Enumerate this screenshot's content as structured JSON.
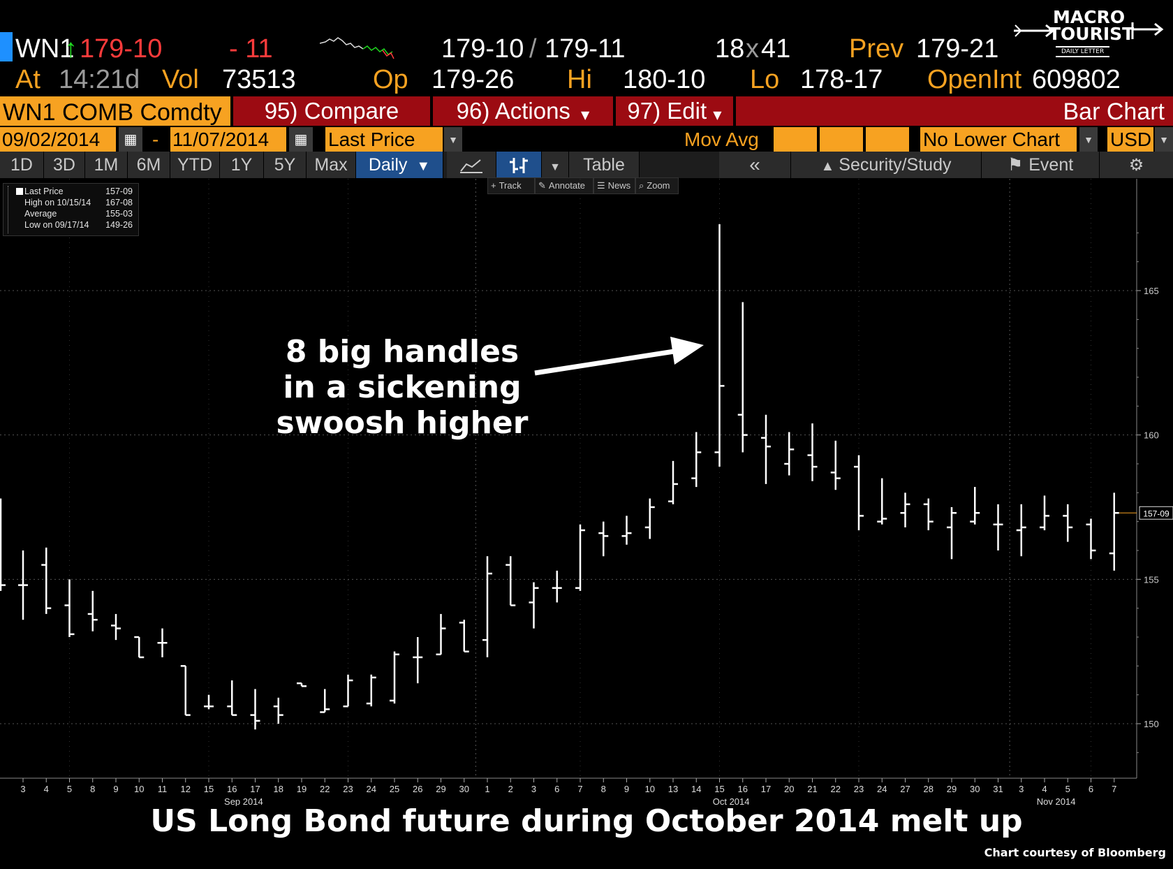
{
  "header": {
    "ticker": "WN1",
    "last": "179-10",
    "change": "- 11",
    "bid_ask_bid": "179-10",
    "bid_ask_sep": "/",
    "bid_ask_ask": "179-11",
    "size_bid": "18",
    "size_x": "x",
    "size_ask": "41",
    "prev_label": "Prev",
    "prev_value": "179-21",
    "at_label": "At",
    "at_time": "14:21d",
    "vol_label": "Vol",
    "vol_value": "73513",
    "op_label": "Op",
    "op_value": "179-26",
    "hi_label": "Hi",
    "hi_value": "180-10",
    "lo_label": "Lo",
    "lo_value": "178-17",
    "openint_label": "OpenInt",
    "openint_value": "609802"
  },
  "logo": {
    "line1": "MACRO",
    "line2": "TOURIST",
    "line3": "DAILY LETTER"
  },
  "toolbar": {
    "security": "WN1 COMB Comdty",
    "compare": "95) Compare",
    "actions": "96) Actions",
    "edit": "97) Edit",
    "chart_type": "Bar Chart"
  },
  "row3": {
    "start_date": "09/02/2014",
    "dash": "-",
    "end_date": "11/07/2014",
    "field": "Last Price",
    "mov_avg": "Mov Avg",
    "lower_chart": "No Lower Chart",
    "currency": "USD"
  },
  "tabs": [
    "1D",
    "3D",
    "1M",
    "6M",
    "YTD",
    "1Y",
    "5Y",
    "Max"
  ],
  "period": "Daily",
  "table_label": "Table",
  "security_study": "Security/Study",
  "event": "Event",
  "mini_tools": [
    "Track",
    "Annotate",
    "News",
    "Zoom"
  ],
  "legend": [
    {
      "label": "Last Price",
      "value": "157-09"
    },
    {
      "label": "High on 10/15/14",
      "value": "167-08"
    },
    {
      "label": "Average",
      "value": "155-03"
    },
    {
      "label": "Low on 09/17/14",
      "value": "149-26"
    }
  ],
  "annotation": [
    "8 big handles",
    "in a sickening",
    "swoosh higher"
  ],
  "caption": "US Long Bond future during October 2014 melt up",
  "credit": "Chart courtesy of Bloomberg",
  "colors": {
    "orange": "#f7a221",
    "red_bar": "#9c0b12",
    "active_tab": "#1f4f8c",
    "down": "#ff3b3b",
    "up": "#1fd61f"
  },
  "chart_data": {
    "type": "bar",
    "subtype": "ohlc",
    "ylim": [
      148,
      168
    ],
    "y_ticks": [
      "150",
      "155",
      "160",
      "165"
    ],
    "last_price_tag": "157-09",
    "month_labels": [
      "Sep 2014",
      "Oct 2014",
      "Nov 2014"
    ],
    "x_labels": [
      "3",
      "4",
      "5",
      "8",
      "9",
      "10",
      "11",
      "12",
      "15",
      "16",
      "17",
      "18",
      "19",
      "22",
      "23",
      "24",
      "25",
      "26",
      "29",
      "30",
      "1",
      "2",
      "3",
      "6",
      "7",
      "8",
      "9",
      "10",
      "13",
      "14",
      "15",
      "16",
      "17",
      "20",
      "21",
      "22",
      "23",
      "24",
      "27",
      "28",
      "29",
      "30",
      "31",
      "3",
      "4",
      "5",
      "6",
      "7"
    ],
    "bars": [
      {
        "o": 154.8,
        "h": 156.0,
        "l": 153.6,
        "c": 154.8
      },
      {
        "o": 155.5,
        "h": 156.1,
        "l": 153.8,
        "c": 154.0
      },
      {
        "o": 154.1,
        "h": 155.0,
        "l": 153.0,
        "c": 153.1
      },
      {
        "o": 153.8,
        "h": 154.6,
        "l": 153.2,
        "c": 153.6
      },
      {
        "o": 153.4,
        "h": 153.8,
        "l": 152.9,
        "c": 153.3
      },
      {
        "o": 153.0,
        "h": 153.0,
        "l": 152.3,
        "c": 152.3
      },
      {
        "o": 152.8,
        "h": 153.3,
        "l": 152.3,
        "c": 152.8
      },
      {
        "o": 152.0,
        "h": 152.0,
        "l": 150.3,
        "c": 150.3
      },
      {
        "o": 150.6,
        "h": 151.0,
        "l": 150.5,
        "c": 150.6
      },
      {
        "o": 150.6,
        "h": 151.5,
        "l": 150.3,
        "c": 150.3
      },
      {
        "o": 150.3,
        "h": 151.2,
        "l": 149.8,
        "c": 150.1
      },
      {
        "o": 150.6,
        "h": 150.9,
        "l": 150.0,
        "c": 150.3
      },
      {
        "o": 151.4,
        "h": 151.4,
        "l": 151.3,
        "c": 151.3
      },
      {
        "o": 150.4,
        "h": 151.2,
        "l": 150.4,
        "c": 150.5
      },
      {
        "o": 150.6,
        "h": 151.7,
        "l": 150.6,
        "c": 151.5
      },
      {
        "o": 150.7,
        "h": 151.7,
        "l": 150.6,
        "c": 151.6
      },
      {
        "o": 150.8,
        "h": 152.5,
        "l": 150.7,
        "c": 152.4
      },
      {
        "o": 152.3,
        "h": 153.0,
        "l": 151.4,
        "c": 152.3
      },
      {
        "o": 152.4,
        "h": 153.8,
        "l": 152.4,
        "c": 153.3
      },
      {
        "o": 153.5,
        "h": 153.6,
        "l": 152.5,
        "c": 152.5
      },
      {
        "o": 152.9,
        "h": 155.8,
        "l": 152.3,
        "c": 155.2
      },
      {
        "o": 155.5,
        "h": 155.8,
        "l": 154.1,
        "c": 154.1
      },
      {
        "o": 154.2,
        "h": 154.9,
        "l": 153.3,
        "c": 154.7
      },
      {
        "o": 154.7,
        "h": 155.3,
        "l": 154.2,
        "c": 154.7
      },
      {
        "o": 154.7,
        "h": 156.9,
        "l": 154.6,
        "c": 156.7
      },
      {
        "o": 156.6,
        "h": 157.0,
        "l": 155.8,
        "c": 156.5
      },
      {
        "o": 156.5,
        "h": 157.2,
        "l": 156.2,
        "c": 156.6
      },
      {
        "o": 156.8,
        "h": 157.8,
        "l": 156.4,
        "c": 157.5
      },
      {
        "o": 157.7,
        "h": 159.1,
        "l": 157.6,
        "c": 158.3
      },
      {
        "o": 158.5,
        "h": 160.1,
        "l": 158.2,
        "c": 159.4
      },
      {
        "o": 159.4,
        "h": 167.3,
        "l": 158.9,
        "c": 161.7
      },
      {
        "o": 160.7,
        "h": 164.6,
        "l": 159.4,
        "c": 160.0
      },
      {
        "o": 159.9,
        "h": 160.7,
        "l": 158.3,
        "c": 159.6
      },
      {
        "o": 159.0,
        "h": 160.1,
        "l": 158.6,
        "c": 159.5
      },
      {
        "o": 159.3,
        "h": 160.4,
        "l": 158.4,
        "c": 158.9
      },
      {
        "o": 158.7,
        "h": 159.8,
        "l": 158.1,
        "c": 158.5
      },
      {
        "o": 158.9,
        "h": 159.3,
        "l": 156.7,
        "c": 157.2
      },
      {
        "o": 157.0,
        "h": 158.5,
        "l": 156.9,
        "c": 157.1
      },
      {
        "o": 157.3,
        "h": 158.0,
        "l": 156.8,
        "c": 157.6
      },
      {
        "o": 157.6,
        "h": 157.8,
        "l": 156.7,
        "c": 157.0
      },
      {
        "o": 156.8,
        "h": 157.5,
        "l": 155.7,
        "c": 157.3
      },
      {
        "o": 157.0,
        "h": 158.2,
        "l": 156.9,
        "c": 157.3
      },
      {
        "o": 156.9,
        "h": 157.6,
        "l": 156.0,
        "c": 156.9
      },
      {
        "o": 156.7,
        "h": 157.6,
        "l": 155.8,
        "c": 156.8
      },
      {
        "o": 156.8,
        "h": 157.9,
        "l": 156.7,
        "c": 157.2
      },
      {
        "o": 157.2,
        "h": 157.6,
        "l": 156.3,
        "c": 156.8
      },
      {
        "o": 156.9,
        "h": 157.1,
        "l": 155.7,
        "c": 156.0
      },
      {
        "o": 155.9,
        "h": 158.0,
        "l": 155.3,
        "c": 157.3
      }
    ]
  }
}
